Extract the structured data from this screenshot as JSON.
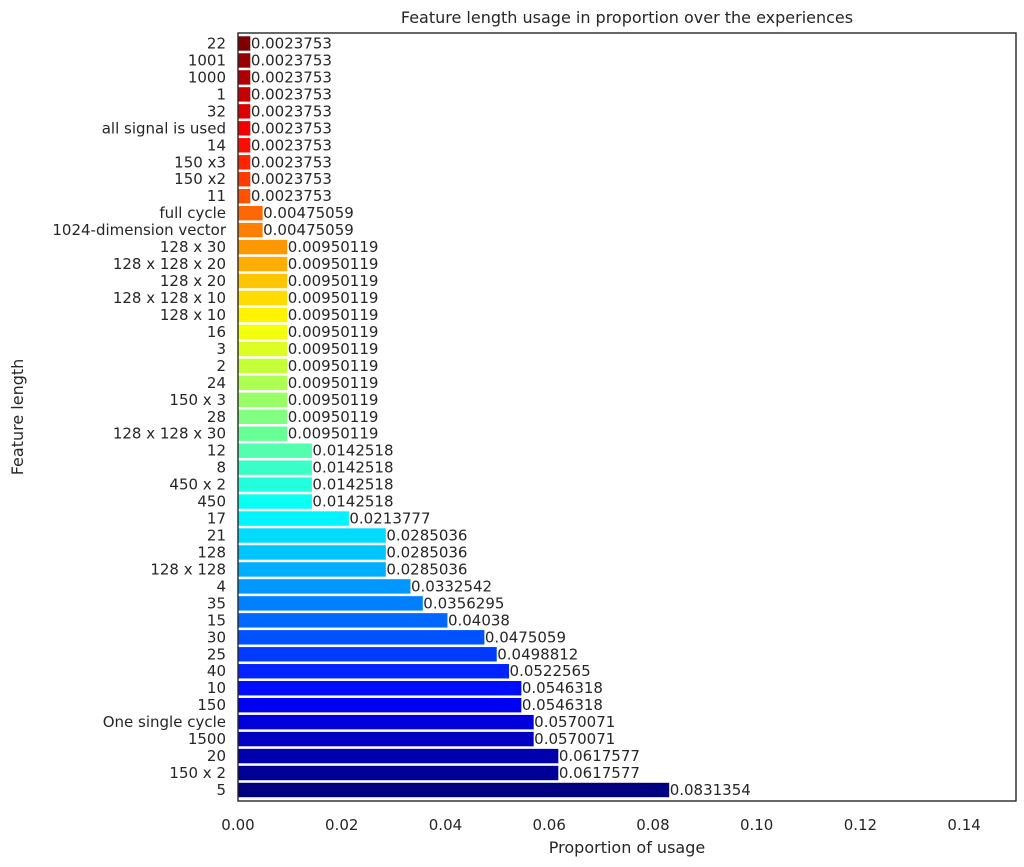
{
  "chart_data": {
    "type": "bar",
    "orientation": "horizontal",
    "title": "Feature length usage in proportion over the experiences",
    "xlabel": "Proportion of usage",
    "ylabel": "Feature length",
    "xlim": [
      0,
      0.15
    ],
    "xticks": [
      "0.00",
      "0.02",
      "0.04",
      "0.06",
      "0.08",
      "0.10",
      "0.12",
      "0.14"
    ],
    "xtick_values": [
      0,
      0.02,
      0.04,
      0.06,
      0.08,
      0.1,
      0.12,
      0.14
    ],
    "grid": false,
    "colormap": "jet",
    "categories": [
      "5",
      "150 x 2",
      "20",
      "1500",
      "One single cycle",
      "150",
      "10",
      "40",
      "25",
      "30",
      "15",
      "35",
      "4",
      "128 x 128",
      "128",
      "21",
      "17",
      "450",
      "450 x 2",
      "8",
      "12",
      "128 x 128 x 30",
      "28",
      "150 x 3",
      "24",
      "2",
      "3",
      "16",
      "128 x 10",
      "128 x 128 x 10",
      "128 x 20",
      "128 x 128 x 20",
      "128 x 30",
      "1024-dimension vector",
      "full cycle",
      "11",
      "150 x2",
      "150 x3",
      "14",
      "all signal is used",
      "32",
      "1",
      "1000",
      "1001",
      "22"
    ],
    "values": [
      0.0831354,
      0.0617577,
      0.0617577,
      0.0570071,
      0.0570071,
      0.0546318,
      0.0546318,
      0.0522565,
      0.0498812,
      0.0475059,
      0.04038,
      0.0356295,
      0.0332542,
      0.0285036,
      0.0285036,
      0.0285036,
      0.0213777,
      0.0142518,
      0.0142518,
      0.0142518,
      0.0142518,
      0.00950119,
      0.00950119,
      0.00950119,
      0.00950119,
      0.00950119,
      0.00950119,
      0.00950119,
      0.00950119,
      0.00950119,
      0.00950119,
      0.00950119,
      0.00950119,
      0.00475059,
      0.00475059,
      0.0023753,
      0.0023753,
      0.0023753,
      0.0023753,
      0.0023753,
      0.0023753,
      0.0023753,
      0.0023753,
      0.0023753,
      0.0023753
    ],
    "value_labels": [
      "0.0831354",
      "0.0617577",
      "0.0617577",
      "0.0570071",
      "0.0570071",
      "0.0546318",
      "0.0546318",
      "0.0522565",
      "0.0498812",
      "0.0475059",
      "0.04038",
      "0.0356295",
      "0.0332542",
      "0.0285036",
      "0.0285036",
      "0.0285036",
      "0.0213777",
      "0.0142518",
      "0.0142518",
      "0.0142518",
      "0.0142518",
      "0.00950119",
      "0.00950119",
      "0.00950119",
      "0.00950119",
      "0.00950119",
      "0.00950119",
      "0.00950119",
      "0.00950119",
      "0.00950119",
      "0.00950119",
      "0.00950119",
      "0.00950119",
      "0.00475059",
      "0.00475059",
      "0.0023753",
      "0.0023753",
      "0.0023753",
      "0.0023753",
      "0.0023753",
      "0.0023753",
      "0.0023753",
      "0.0023753",
      "0.0023753",
      "0.0023753"
    ]
  }
}
